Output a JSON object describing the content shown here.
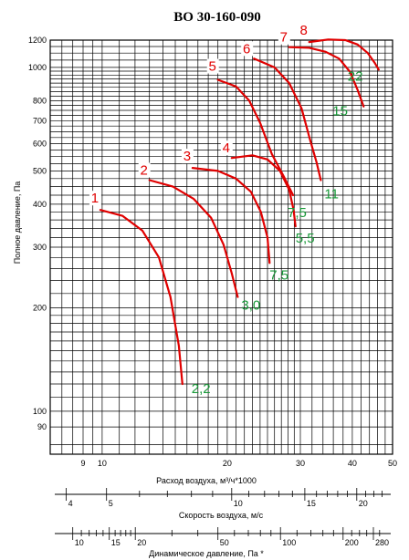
{
  "chart_data": {
    "type": "line",
    "title": "ВО 30-160-090",
    "xlabel": "Расход воздуха, м³/ч*1000",
    "ylabel": "Полное давление, Па",
    "x_scale": "log",
    "y_scale": "log",
    "xlim": [
      7.5,
      50
    ],
    "ylim": [
      75,
      1200
    ],
    "grid": true,
    "x_ticks": [
      9,
      10,
      20,
      30,
      40,
      50
    ],
    "y_ticks": [
      90,
      100,
      200,
      300,
      400,
      500,
      600,
      700,
      800,
      1000,
      1200
    ],
    "velocity_axis": {
      "label": "Скорость воздуха, м/с",
      "ticks": [
        4,
        5,
        10,
        15,
        20
      ]
    },
    "dynamic_pressure_axis": {
      "label": "Динамическое давление, Па *",
      "ticks": [
        10,
        15,
        20,
        50,
        100,
        200,
        280
      ]
    },
    "series": [
      {
        "name": "1",
        "power": "2,2",
        "points": [
          [
            9.9,
            385
          ],
          [
            11.2,
            370
          ],
          [
            12.5,
            335
          ],
          [
            13.7,
            280
          ],
          [
            14.6,
            215
          ],
          [
            15.3,
            155
          ],
          [
            15.6,
            120
          ]
        ]
      },
      {
        "name": "2",
        "power": "3,0",
        "points": [
          [
            13.0,
            470
          ],
          [
            14.8,
            450
          ],
          [
            16.6,
            415
          ],
          [
            18.3,
            365
          ],
          [
            19.6,
            305
          ],
          [
            20.5,
            252
          ],
          [
            21.2,
            215
          ]
        ]
      },
      {
        "name": "3",
        "power": "7,5",
        "points": [
          [
            16.5,
            510
          ],
          [
            19.0,
            500
          ],
          [
            21.0,
            475
          ],
          [
            22.8,
            435
          ],
          [
            24.1,
            380
          ],
          [
            25.0,
            320
          ],
          [
            25.3,
            270
          ]
        ]
      },
      {
        "name": "4",
        "power": "5,5",
        "points": [
          [
            20.5,
            545
          ],
          [
            23.0,
            555
          ],
          [
            25.0,
            540
          ],
          [
            26.8,
            500
          ],
          [
            28.2,
            440
          ],
          [
            28.9,
            385
          ],
          [
            29.2,
            345
          ]
        ]
      },
      {
        "name": "5",
        "power": "7,5",
        "points": [
          [
            19.0,
            920
          ],
          [
            21.0,
            880
          ],
          [
            22.6,
            800
          ],
          [
            24.0,
            690
          ],
          [
            25.6,
            560
          ],
          [
            27.4,
            480
          ],
          [
            28.8,
            425
          ]
        ]
      },
      {
        "name": "6",
        "power": "11",
        "points": [
          [
            23.2,
            1060
          ],
          [
            26.0,
            1000
          ],
          [
            28.2,
            900
          ],
          [
            30.2,
            760
          ],
          [
            31.6,
            620
          ],
          [
            32.8,
            530
          ],
          [
            33.6,
            470
          ]
        ]
      },
      {
        "name": "7",
        "power": "15",
        "points": [
          [
            28.2,
            1145
          ],
          [
            31.5,
            1140
          ],
          [
            34.5,
            1110
          ],
          [
            37.2,
            1060
          ],
          [
            39.5,
            970
          ],
          [
            41.2,
            860
          ],
          [
            42.6,
            770
          ]
        ]
      },
      {
        "name": "8",
        "power": "22",
        "points": [
          [
            31.5,
            1185
          ],
          [
            35.0,
            1205
          ],
          [
            38.5,
            1200
          ],
          [
            41.2,
            1165
          ],
          [
            43.6,
            1100
          ],
          [
            45.3,
            1030
          ],
          [
            46.3,
            985
          ]
        ]
      }
    ]
  }
}
